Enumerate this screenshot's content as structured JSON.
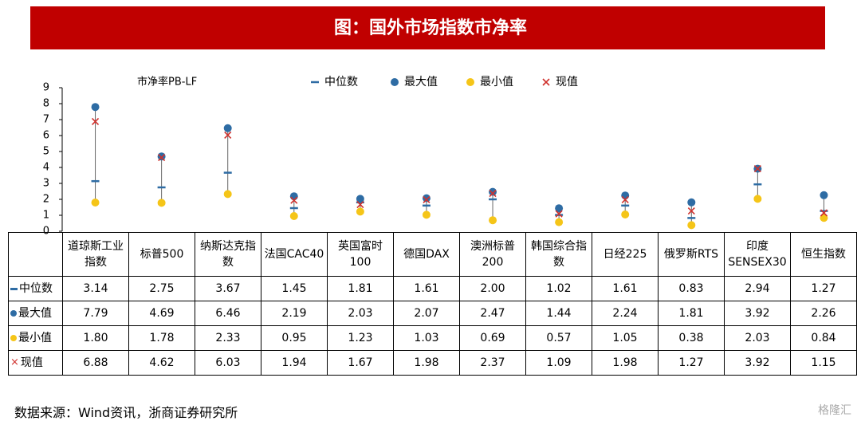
{
  "chart_data": {
    "type": "range-dot",
    "title": "图：国外市场指数市净率",
    "y_label": "市净率PB-LF",
    "categories": [
      "道琼斯工业指数",
      "标普500",
      "纳斯达克指数",
      "法国CAC40",
      "英国富时100",
      "德国DAX",
      "澳洲标普200",
      "韩国综合指数",
      "日经225",
      "俄罗斯RTS",
      "印度SENSEX30",
      "恒生指数"
    ],
    "series": [
      {
        "name": "中位数",
        "color": "#2e6ca4",
        "marker": "dash",
        "values": [
          3.14,
          2.75,
          3.67,
          1.45,
          1.81,
          1.61,
          2.0,
          1.02,
          1.61,
          0.83,
          2.94,
          1.27
        ],
        "value_labels": [
          "3.14",
          "2.75",
          "3.67",
          "1.45",
          "1.81",
          "1.61",
          "2.00",
          "1.02",
          "1.61",
          "0.83",
          "2.94",
          "1.27"
        ]
      },
      {
        "name": "最大值",
        "color": "#2e6ca4",
        "marker": "circle",
        "values": [
          7.79,
          4.69,
          6.46,
          2.19,
          2.03,
          2.07,
          2.47,
          1.44,
          2.24,
          1.81,
          3.92,
          2.26
        ],
        "value_labels": [
          "7.79",
          "4.69",
          "6.46",
          "2.19",
          "2.03",
          "2.07",
          "2.47",
          "1.44",
          "2.24",
          "1.81",
          "3.92",
          "2.26"
        ]
      },
      {
        "name": "最小值",
        "color": "#f5c518",
        "marker": "circle",
        "values": [
          1.8,
          1.78,
          2.33,
          0.95,
          1.23,
          1.03,
          0.69,
          0.57,
          1.05,
          0.38,
          2.03,
          0.84
        ],
        "value_labels": [
          "1.80",
          "1.78",
          "2.33",
          "0.95",
          "1.23",
          "1.03",
          "0.69",
          "0.57",
          "1.05",
          "0.38",
          "2.03",
          "0.84"
        ]
      },
      {
        "name": "现值",
        "color": "#d0312d",
        "marker": "cross",
        "values": [
          6.88,
          4.62,
          6.03,
          1.94,
          1.67,
          1.98,
          2.37,
          1.09,
          1.98,
          1.27,
          3.92,
          1.15
        ],
        "value_labels": [
          "6.88",
          "4.62",
          "6.03",
          "1.94",
          "1.67",
          "1.98",
          "2.37",
          "1.09",
          "1.98",
          "1.27",
          "3.92",
          "1.15"
        ]
      }
    ],
    "ylim": [
      0,
      9
    ],
    "yticks": [
      0,
      1,
      2,
      3,
      4,
      5,
      6,
      7,
      8,
      9
    ],
    "source": "数据来源：Wind资讯，浙商证券研究所",
    "watermark": "格隆汇"
  }
}
